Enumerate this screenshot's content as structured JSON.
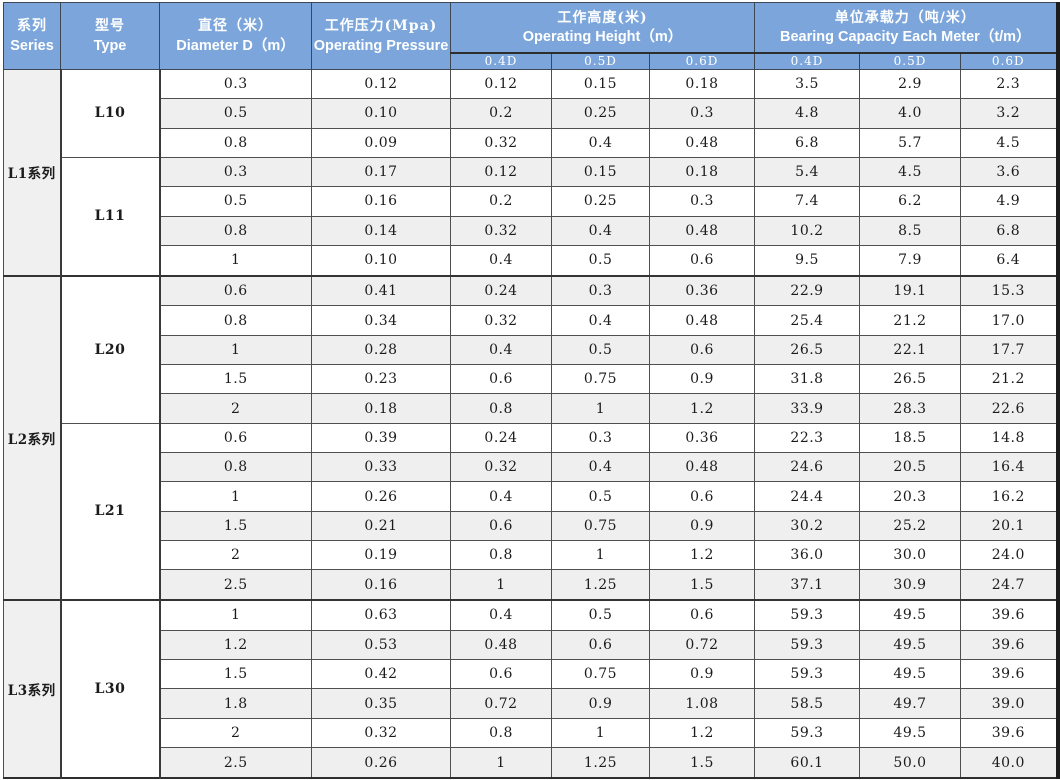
{
  "colors": {
    "header_bg": "#7ca6db",
    "header_text": "#ffffff",
    "row_stripe": "#efefef",
    "series_column_bg": "#f1f0f0",
    "border": "#4f4f4f",
    "data_text": "#1b1b1b"
  },
  "headers": {
    "series": {
      "zh": "系列",
      "en": "Series"
    },
    "type": {
      "zh": "型号",
      "en": "Type"
    },
    "diameter": {
      "zh": "直径（米）",
      "en": "Diameter D（m）"
    },
    "pressure": {
      "zh": "工作压力(Mpa)",
      "en": "Operating Pressure"
    },
    "height": {
      "zh": "工作高度(米)",
      "en": "Operating Height（m）"
    },
    "capacity": {
      "zh": "单位承载力（吨/米）",
      "en": "Bearing Capacity Each Meter（t/m）"
    },
    "subheaders": [
      "0.4D",
      "0.5D",
      "0.6D"
    ]
  },
  "sections": [
    {
      "series": "L1系列",
      "types": [
        {
          "type": "L10",
          "rows": [
            {
              "diameter": "0.3",
              "pressure": "0.12",
              "height": [
                "0.12",
                "0.15",
                "0.18"
              ],
              "capacity": [
                "3.5",
                "2.9",
                "2.3"
              ]
            },
            {
              "diameter": "0.5",
              "pressure": "0.10",
              "height": [
                "0.2",
                "0.25",
                "0.3"
              ],
              "capacity": [
                "4.8",
                "4.0",
                "3.2"
              ]
            },
            {
              "diameter": "0.8",
              "pressure": "0.09",
              "height": [
                "0.32",
                "0.4",
                "0.48"
              ],
              "capacity": [
                "6.8",
                "5.7",
                "4.5"
              ]
            }
          ]
        },
        {
          "type": "L11",
          "rows": [
            {
              "diameter": "0.3",
              "pressure": "0.17",
              "height": [
                "0.12",
                "0.15",
                "0.18"
              ],
              "capacity": [
                "5.4",
                "4.5",
                "3.6"
              ]
            },
            {
              "diameter": "0.5",
              "pressure": "0.16",
              "height": [
                "0.2",
                "0.25",
                "0.3"
              ],
              "capacity": [
                "7.4",
                "6.2",
                "4.9"
              ]
            },
            {
              "diameter": "0.8",
              "pressure": "0.14",
              "height": [
                "0.32",
                "0.4",
                "0.48"
              ],
              "capacity": [
                "10.2",
                "8.5",
                "6.8"
              ]
            },
            {
              "diameter": "1",
              "pressure": "0.10",
              "height": [
                "0.4",
                "0.5",
                "0.6"
              ],
              "capacity": [
                "9.5",
                "7.9",
                "6.4"
              ]
            }
          ]
        }
      ]
    },
    {
      "series": "L2系列",
      "types": [
        {
          "type": "L20",
          "rows": [
            {
              "diameter": "0.6",
              "pressure": "0.41",
              "height": [
                "0.24",
                "0.3",
                "0.36"
              ],
              "capacity": [
                "22.9",
                "19.1",
                "15.3"
              ]
            },
            {
              "diameter": "0.8",
              "pressure": "0.34",
              "height": [
                "0.32",
                "0.4",
                "0.48"
              ],
              "capacity": [
                "25.4",
                "21.2",
                "17.0"
              ]
            },
            {
              "diameter": "1",
              "pressure": "0.28",
              "height": [
                "0.4",
                "0.5",
                "0.6"
              ],
              "capacity": [
                "26.5",
                "22.1",
                "17.7"
              ]
            },
            {
              "diameter": "1.5",
              "pressure": "0.23",
              "height": [
                "0.6",
                "0.75",
                "0.9"
              ],
              "capacity": [
                "31.8",
                "26.5",
                "21.2"
              ]
            },
            {
              "diameter": "2",
              "pressure": "0.18",
              "height": [
                "0.8",
                "1",
                "1.2"
              ],
              "capacity": [
                "33.9",
                "28.3",
                "22.6"
              ]
            }
          ]
        },
        {
          "type": "L21",
          "rows": [
            {
              "diameter": "0.6",
              "pressure": "0.39",
              "height": [
                "0.24",
                "0.3",
                "0.36"
              ],
              "capacity": [
                "22.3",
                "18.5",
                "14.8"
              ]
            },
            {
              "diameter": "0.8",
              "pressure": "0.33",
              "height": [
                "0.32",
                "0.4",
                "0.48"
              ],
              "capacity": [
                "24.6",
                "20.5",
                "16.4"
              ]
            },
            {
              "diameter": "1",
              "pressure": "0.26",
              "height": [
                "0.4",
                "0.5",
                "0.6"
              ],
              "capacity": [
                "24.4",
                "20.3",
                "16.2"
              ]
            },
            {
              "diameter": "1.5",
              "pressure": "0.21",
              "height": [
                "0.6",
                "0.75",
                "0.9"
              ],
              "capacity": [
                "30.2",
                "25.2",
                "20.1"
              ]
            },
            {
              "diameter": "2",
              "pressure": "0.19",
              "height": [
                "0.8",
                "1",
                "1.2"
              ],
              "capacity": [
                "36.0",
                "30.0",
                "24.0"
              ]
            },
            {
              "diameter": "2.5",
              "pressure": "0.16",
              "height": [
                "1",
                "1.25",
                "1.5"
              ],
              "capacity": [
                "37.1",
                "30.9",
                "24.7"
              ]
            }
          ]
        }
      ]
    },
    {
      "series": "L3系列",
      "types": [
        {
          "type": "L30",
          "rows": [
            {
              "diameter": "1",
              "pressure": "0.63",
              "height": [
                "0.4",
                "0.5",
                "0.6"
              ],
              "capacity": [
                "59.3",
                "49.5",
                "39.6"
              ]
            },
            {
              "diameter": "1.2",
              "pressure": "0.53",
              "height": [
                "0.48",
                "0.6",
                "0.72"
              ],
              "capacity": [
                "59.3",
                "49.5",
                "39.6"
              ]
            },
            {
              "diameter": "1.5",
              "pressure": "0.42",
              "height": [
                "0.6",
                "0.75",
                "0.9"
              ],
              "capacity": [
                "59.3",
                "49.5",
                "39.6"
              ]
            },
            {
              "diameter": "1.8",
              "pressure": "0.35",
              "height": [
                "0.72",
                "0.9",
                "1.08"
              ],
              "capacity": [
                "58.5",
                "49.7",
                "39.0"
              ]
            },
            {
              "diameter": "2",
              "pressure": "0.32",
              "height": [
                "0.8",
                "1",
                "1.2"
              ],
              "capacity": [
                "59.3",
                "49.5",
                "39.6"
              ]
            },
            {
              "diameter": "2.5",
              "pressure": "0.26",
              "height": [
                "1",
                "1.25",
                "1.5"
              ],
              "capacity": [
                "60.1",
                "50.0",
                "40.0"
              ]
            }
          ]
        }
      ]
    }
  ]
}
